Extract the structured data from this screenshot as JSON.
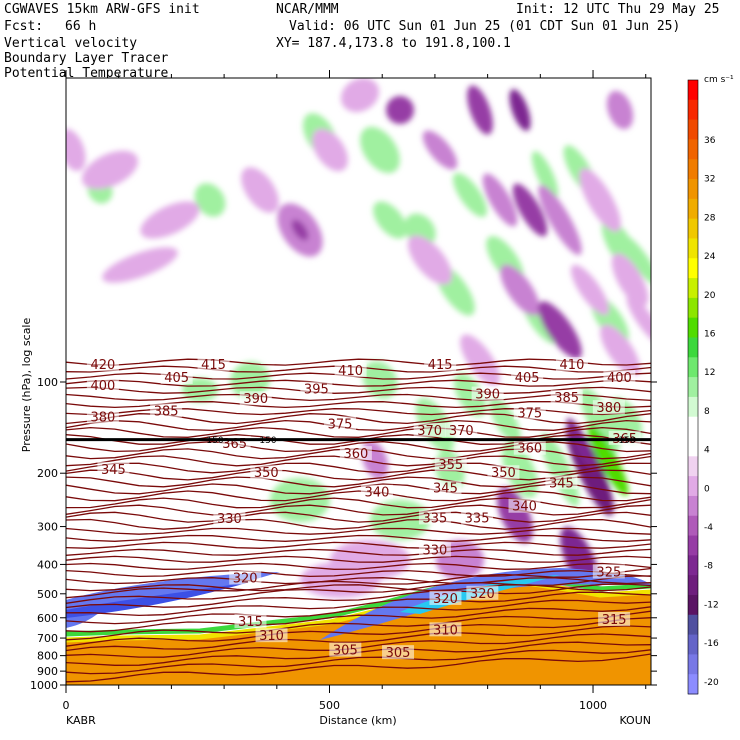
{
  "header": {
    "model": "CGWAVES 15km ARW-GFS init",
    "org": "NCAR/MMM",
    "init": "Init: 12 UTC Thu 29 May 25",
    "fcst_label": "Fcst:",
    "fcst_value": "66 h",
    "valid": "Valid: 06 UTC Sun 01 Jun 25 (01 CDT Sun 01 Jun 25)",
    "xy": "XY= 187.4,173.8 to 191.8,100.1",
    "field1": "Vertical velocity",
    "field2": "Boundary Layer Tracer",
    "field3": "Potential Temperature",
    "field3_color": "#8b1a1a"
  },
  "chart_data": {
    "type": "heatmap",
    "title": "Vertical velocity",
    "xlabel": "Distance (km)",
    "ylabel": "Pressure (hPa), log scale",
    "xlim": [
      0,
      1110
    ],
    "x_ticks": [
      0,
      500,
      1000
    ],
    "y_scale": "log",
    "y_ticks": [
      100,
      200,
      300,
      400,
      500,
      600,
      700,
      800,
      900,
      1000
    ],
    "x_endpoint_labels": [
      "KABR",
      "KOUN"
    ],
    "colorbar": {
      "units": "cm s⁻¹",
      "labels": [
        36,
        32,
        28,
        24,
        20,
        16,
        12,
        8,
        4,
        0,
        -4,
        -8,
        -12,
        -16,
        -20
      ],
      "colors": [
        "#ff0000",
        "#f82800",
        "#f04a00",
        "#f06400",
        "#f07c00",
        "#f09400",
        "#f0ac00",
        "#f0c800",
        "#f0e400",
        "#ffff00",
        "#c8f000",
        "#8ce600",
        "#50dc00",
        "#3cd83c",
        "#6ee86e",
        "#a0f0a0",
        "#d2fad2",
        "#ffffff",
        "#ffffff",
        "#f0d2f0",
        "#e1aae6",
        "#c882d2",
        "#af5ab9",
        "#963ca5",
        "#7d2891",
        "#6e1e7d",
        "#5a1464",
        "#5050a0",
        "#6464c8",
        "#7878e6",
        "#8c8cff"
      ]
    },
    "theta_contours": {
      "color": "#7a0a0a",
      "labels": [
        {
          "text": "420",
          "x": 70,
          "p": 88
        },
        {
          "text": "415",
          "x": 280,
          "p": 88
        },
        {
          "text": "410",
          "x": 540,
          "p": 92
        },
        {
          "text": "415",
          "x": 710,
          "p": 88
        },
        {
          "text": "410",
          "x": 960,
          "p": 88
        },
        {
          "text": "405",
          "x": 210,
          "p": 97
        },
        {
          "text": "405",
          "x": 875,
          "p": 97
        },
        {
          "text": "400",
          "x": 70,
          "p": 103
        },
        {
          "text": "400",
          "x": 1050,
          "p": 97
        },
        {
          "text": "395",
          "x": 475,
          "p": 106
        },
        {
          "text": "390",
          "x": 360,
          "p": 114
        },
        {
          "text": "390",
          "x": 800,
          "p": 110
        },
        {
          "text": "385",
          "x": 190,
          "p": 125
        },
        {
          "text": "385",
          "x": 950,
          "p": 113
        },
        {
          "text": "380",
          "x": 70,
          "p": 131
        },
        {
          "text": "380",
          "x": 1030,
          "p": 122
        },
        {
          "text": "375",
          "x": 520,
          "p": 138
        },
        {
          "text": "375",
          "x": 880,
          "p": 127
        },
        {
          "text": "370",
          "x": 690,
          "p": 145
        },
        {
          "text": "370",
          "x": 750,
          "p": 145
        },
        {
          "text": "365",
          "x": 320,
          "p": 160
        },
        {
          "text": "365",
          "x": 1060,
          "p": 154
        },
        {
          "text": "360",
          "x": 550,
          "p": 173
        },
        {
          "text": "360",
          "x": 880,
          "p": 166
        },
        {
          "text": "355",
          "x": 730,
          "p": 188
        },
        {
          "text": "350",
          "x": 380,
          "p": 200
        },
        {
          "text": "350",
          "x": 830,
          "p": 200
        },
        {
          "text": "345",
          "x": 90,
          "p": 195
        },
        {
          "text": "345",
          "x": 720,
          "p": 225
        },
        {
          "text": "345",
          "x": 940,
          "p": 216
        },
        {
          "text": "340",
          "x": 590,
          "p": 232
        },
        {
          "text": "340",
          "x": 870,
          "p": 258
        },
        {
          "text": "335",
          "x": 700,
          "p": 282
        },
        {
          "text": "335",
          "x": 780,
          "p": 282
        },
        {
          "text": "330",
          "x": 310,
          "p": 283
        },
        {
          "text": "330",
          "x": 700,
          "p": 360
        },
        {
          "text": "325",
          "x": 1030,
          "p": 425
        },
        {
          "text": "320",
          "x": 720,
          "p": 520
        },
        {
          "text": "320",
          "x": 790,
          "p": 500
        },
        {
          "text": "320",
          "x": 340,
          "p": 445
        },
        {
          "text": "315",
          "x": 350,
          "p": 620
        },
        {
          "text": "315",
          "x": 1040,
          "p": 610
        },
        {
          "text": "310",
          "x": 390,
          "p": 690
        },
        {
          "text": "310",
          "x": 720,
          "p": 660
        },
        {
          "text": "305",
          "x": 530,
          "p": 770
        },
        {
          "text": "305",
          "x": 630,
          "p": 785
        }
      ]
    },
    "tropopause_marker": {
      "p": 155,
      "labels": [
        "150",
        "150",
        "150"
      ]
    },
    "grid": false
  }
}
